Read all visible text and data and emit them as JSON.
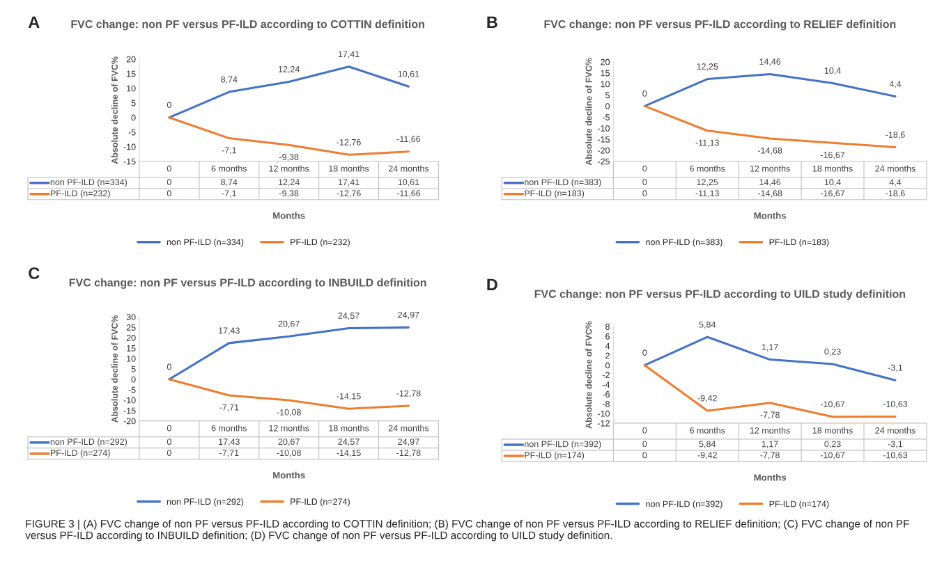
{
  "chart_data": [
    {
      "type": "line",
      "title": "FVC change: non PF versus PF-ILD according to COTTIN definition",
      "ylabel": "Absolute decline of FVC%",
      "xlabel": "Months",
      "categories": [
        "0",
        "6 months",
        "12 months",
        "18 months",
        "24 months"
      ],
      "ylim": [
        -15,
        20
      ],
      "yticks": [
        -15,
        -10,
        -5,
        0,
        5,
        10,
        15,
        20
      ],
      "tick_labels": "y",
      "legend": "bottom",
      "annotations": [
        "A"
      ],
      "series": [
        {
          "name": "non PF-ILD (n=334)",
          "color": "#4472c4",
          "values": [
            0,
            8.74,
            12.24,
            17.41,
            10.61
          ],
          "value_labels": [
            "0",
            "8,74",
            "12,24",
            "17,41",
            "10,61"
          ]
        },
        {
          "name": "PF-ILD (n=232)",
          "color": "#ed7d31",
          "values": [
            0,
            -7.1,
            -9.38,
            -12.76,
            -11.66
          ],
          "value_labels": [
            "0",
            "-7,1",
            "-9,38",
            "-12,76",
            "-11,66"
          ]
        }
      ]
    },
    {
      "type": "line",
      "title": "FVC change: non PF versus PF-ILD according to RELIEF definition",
      "ylabel": "Absolute decline of FVC%",
      "xlabel": "Months",
      "categories": [
        "0",
        "6 months",
        "12 months",
        "18 months",
        "24 months"
      ],
      "ylim": [
        -25,
        20
      ],
      "yticks": [
        -25,
        -20,
        -15,
        -10,
        -5,
        0,
        5,
        10,
        15,
        20
      ],
      "tick_labels": "y",
      "legend": "bottom",
      "annotations": [
        "B"
      ],
      "series": [
        {
          "name": "non PF-ILD (n=383)",
          "color": "#4472c4",
          "values": [
            0,
            12.25,
            14.46,
            10.4,
            4.4
          ],
          "value_labels": [
            "0",
            "12,25",
            "14,46",
            "10,4",
            "4,4"
          ]
        },
        {
          "name": "PF-ILD (n=183)",
          "color": "#ed7d31",
          "values": [
            0,
            -11.13,
            -14.68,
            -16.67,
            -18.6
          ],
          "value_labels": [
            "0",
            "-11,13",
            "-14,68",
            "-16,67",
            "-18,6"
          ]
        }
      ]
    },
    {
      "type": "line",
      "title": "FVC change: non PF versus PF-ILD according to INBUILD definition",
      "ylabel": "Absolute decline of FVC%",
      "xlabel": "Months",
      "categories": [
        "0",
        "6 months",
        "12 months",
        "18 months",
        "24 months"
      ],
      "ylim": [
        -20,
        30
      ],
      "yticks": [
        -20,
        -15,
        -10,
        -5,
        0,
        5,
        10,
        15,
        20,
        25,
        30
      ],
      "tick_labels": "y",
      "legend": "bottom",
      "annotations": [
        "C"
      ],
      "series": [
        {
          "name": "non PF-ILD (n=292)",
          "color": "#4472c4",
          "values": [
            0,
            17.43,
            20.67,
            24.57,
            24.97
          ],
          "value_labels": [
            "0",
            "17,43",
            "20,67",
            "24,57",
            "24,97"
          ]
        },
        {
          "name": "PF-ILD (n=274)",
          "color": "#ed7d31",
          "values": [
            0,
            -7.71,
            -10.08,
            -14.15,
            -12.78
          ],
          "value_labels": [
            "0",
            "-7,71",
            "-10,08",
            "-14,15",
            "-12,78"
          ]
        }
      ]
    },
    {
      "type": "line",
      "title": "FVC change: non PF versus PF-ILD according to UILD study definition",
      "ylabel": "Absolute decline of FVC%",
      "xlabel": "Months",
      "categories": [
        "0",
        "6 months",
        "12 months",
        "18 months",
        "24 months"
      ],
      "ylim": [
        -12,
        8
      ],
      "yticks": [
        -12,
        -10,
        -8,
        -6,
        -4,
        -2,
        0,
        2,
        4,
        6,
        8
      ],
      "tick_labels": "y",
      "legend": "bottom",
      "annotations": [
        "D",
        "FIGURE 3 | (A) FVC change of non PF versus PF-ILD according to COTTIN definition; (B) FVC change of non PF versus PF-ILD according to RELIEF definition; (C) FVC change of non PF versus PF-ILD according to INBUILD definition; (D) FVC change of non PF versus PF-ILD according to UILD study definition."
      ],
      "series": [
        {
          "name": "non PF-ILD (n=392)",
          "color": "#4472c4",
          "values": [
            0,
            5.84,
            1.17,
            0.23,
            -3.1
          ],
          "value_labels": [
            "0",
            "5,84",
            "1,17",
            "0,23",
            "-3,1"
          ]
        },
        {
          "name": "PF-ILD (n=174)",
          "color": "#ed7d31",
          "values": [
            0,
            -9.42,
            -7.78,
            -10.67,
            -10.63
          ],
          "value_labels": [
            "0",
            "-9,42",
            "-7,78",
            "-10,67",
            "-10,63"
          ]
        }
      ]
    }
  ]
}
